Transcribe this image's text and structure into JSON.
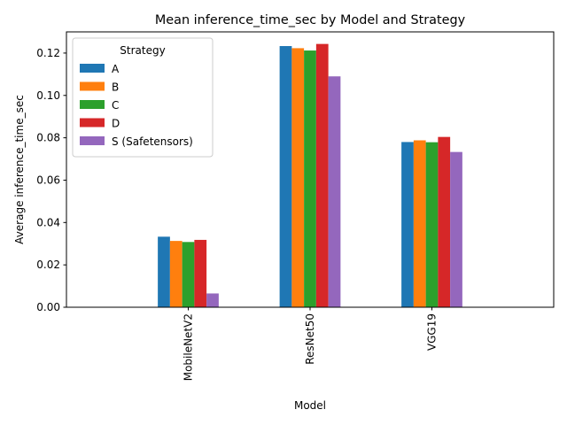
{
  "chart_data": {
    "type": "bar",
    "title": "Mean inference_time_sec by Model and Strategy",
    "xlabel": "Model",
    "ylabel": "Average inference_time_sec",
    "categories": [
      "MobileNetV2",
      "ResNet50",
      "VGG19"
    ],
    "ylim": [
      0,
      0.13
    ],
    "yticks": [
      0.0,
      0.02,
      0.04,
      0.06,
      0.08,
      0.1,
      0.12
    ],
    "ytick_labels": [
      "0.00",
      "0.02",
      "0.04",
      "0.06",
      "0.08",
      "0.10",
      "0.12"
    ],
    "grid": false,
    "legend": {
      "title": "Strategy",
      "placement": "top-left"
    },
    "series": [
      {
        "name": "A",
        "color": "#1f77b4",
        "values": [
          0.0333,
          0.1233,
          0.078
        ]
      },
      {
        "name": "B",
        "color": "#ff7f0e",
        "values": [
          0.0313,
          0.1223,
          0.0788
        ]
      },
      {
        "name": "C",
        "color": "#2ca02c",
        "values": [
          0.0308,
          0.1212,
          0.0779
        ]
      },
      {
        "name": "D",
        "color": "#d62728",
        "values": [
          0.0318,
          0.1243,
          0.0804
        ]
      },
      {
        "name": "S (Safetensors)",
        "color": "#9467bd",
        "values": [
          0.0065,
          0.109,
          0.0733
        ]
      }
    ]
  }
}
